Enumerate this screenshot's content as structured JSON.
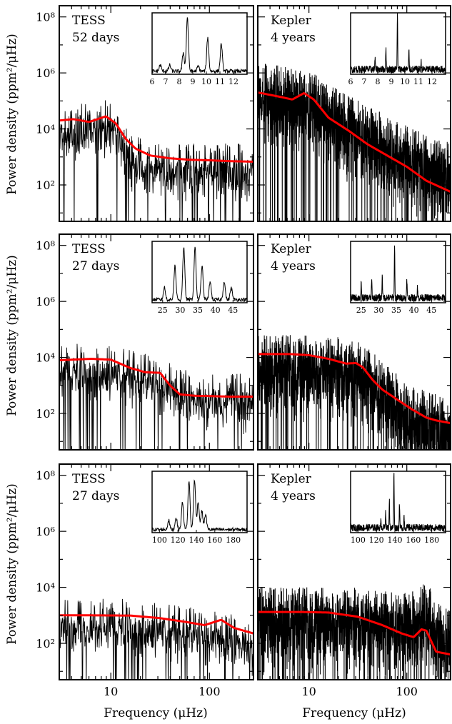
{
  "figure": {
    "ylabel": "Power density (ppm²/μHz)",
    "xlabel": "Frequency (μHz)",
    "x_ticks": [
      10,
      100
    ],
    "y_ticks": [
      "10²",
      "10⁴",
      "10⁶",
      "10⁸"
    ],
    "xlim": [
      3,
      280
    ],
    "ylim_log10": [
      0.7,
      8.4
    ]
  },
  "chart_data": [
    {
      "type": "line",
      "scale": "log-log",
      "label_lines": [
        "TESS",
        "52 days"
      ],
      "x_log_range": [
        0.48,
        2.45
      ],
      "series": [
        {
          "name": "spectrum",
          "color": "#000000",
          "noise_range": [
            2.9,
            4.8
          ],
          "trend_log10": [
            [
              0.48,
              4.3
            ],
            [
              0.7,
              4.3
            ],
            [
              0.95,
              4.45
            ],
            [
              1.05,
              4.2
            ],
            [
              1.2,
              3.3
            ],
            [
              1.35,
              3.0
            ],
            [
              1.6,
              2.9
            ],
            [
              2.0,
              2.9
            ],
            [
              2.45,
              2.9
            ]
          ]
        },
        {
          "name": "background fit",
          "color": "#ff0000",
          "trend_log10": [
            [
              0.48,
              4.3
            ],
            [
              0.62,
              4.35
            ],
            [
              0.78,
              4.25
            ],
            [
              0.95,
              4.45
            ],
            [
              1.05,
              4.2
            ],
            [
              1.15,
              3.65
            ],
            [
              1.25,
              3.3
            ],
            [
              1.4,
              3.05
            ],
            [
              1.6,
              2.95
            ],
            [
              1.8,
              2.9
            ],
            [
              2.0,
              2.88
            ],
            [
              2.2,
              2.85
            ],
            [
              2.45,
              2.83
            ]
          ]
        }
      ],
      "inset": {
        "x_ticks": [
          "6",
          "7",
          "8",
          "9",
          "10",
          "11",
          "12"
        ],
        "xlim": [
          6,
          13
        ],
        "peaks": [
          [
            8.6,
            0.88
          ],
          [
            10.1,
            0.55
          ],
          [
            11.1,
            0.45
          ],
          [
            8.3,
            0.3
          ],
          [
            6.6,
            0.1
          ],
          [
            7.3,
            0.1
          ],
          [
            9.4,
            0.08
          ]
        ]
      }
    },
    {
      "type": "line",
      "scale": "log-log",
      "label_lines": [
        "Kepler",
        "4 years"
      ],
      "x_log_range": [
        0.48,
        2.45
      ],
      "series": [
        {
          "name": "spectrum",
          "color": "#000000",
          "noise_range": [
            3.5,
            6.8
          ],
          "trend_log10": [
            [
              0.48,
              5.8
            ],
            [
              0.8,
              5.6
            ],
            [
              1.1,
              5.3
            ],
            [
              1.4,
              4.6
            ],
            [
              1.8,
              3.9
            ],
            [
              2.2,
              3.2
            ],
            [
              2.45,
              2.9
            ]
          ]
        },
        {
          "name": "background fit",
          "color": "#ff0000",
          "trend_log10": [
            [
              0.48,
              5.3
            ],
            [
              0.7,
              5.15
            ],
            [
              0.83,
              5.05
            ],
            [
              0.95,
              5.28
            ],
            [
              1.05,
              5.05
            ],
            [
              1.2,
              4.4
            ],
            [
              1.4,
              3.95
            ],
            [
              1.6,
              3.45
            ],
            [
              1.8,
              3.05
            ],
            [
              2.0,
              2.65
            ],
            [
              2.2,
              2.15
            ],
            [
              2.45,
              1.75
            ]
          ]
        }
      ],
      "inset": {
        "x_ticks": [
          "6",
          "7",
          "8",
          "9",
          "10",
          "11",
          "12"
        ],
        "xlim": [
          6,
          13
        ],
        "peaks": [
          [
            9.45,
            0.95
          ],
          [
            8.6,
            0.35
          ],
          [
            10.3,
            0.3
          ],
          [
            7.8,
            0.18
          ],
          [
            11.2,
            0.12
          ]
        ]
      }
    },
    {
      "type": "line",
      "scale": "log-log",
      "label_lines": [
        "TESS",
        "27 days"
      ],
      "x_log_range": [
        0.48,
        2.45
      ],
      "series": [
        {
          "name": "spectrum",
          "color": "#000000",
          "noise_range": [
            2.4,
            4.2
          ],
          "trend_log10": [
            [
              0.48,
              3.9
            ],
            [
              0.9,
              3.9
            ],
            [
              1.3,
              3.6
            ],
            [
              1.55,
              3.3
            ],
            [
              1.8,
              2.9
            ],
            [
              2.45,
              2.8
            ]
          ]
        },
        {
          "name": "background fit",
          "color": "#ff0000",
          "trend_log10": [
            [
              0.48,
              3.9
            ],
            [
              0.8,
              3.95
            ],
            [
              1.0,
              3.92
            ],
            [
              1.2,
              3.62
            ],
            [
              1.35,
              3.47
            ],
            [
              1.5,
              3.45
            ],
            [
              1.6,
              3.0
            ],
            [
              1.7,
              2.68
            ],
            [
              1.85,
              2.63
            ],
            [
              2.0,
              2.62
            ],
            [
              2.2,
              2.6
            ],
            [
              2.45,
              2.6
            ]
          ]
        }
      ],
      "inset": {
        "x_ticks": [
          "25",
          "30",
          "35",
          "40",
          "45"
        ],
        "xlim": [
          22,
          49
        ],
        "peaks": [
          [
            31,
            0.85
          ],
          [
            34.2,
            0.85
          ],
          [
            28.5,
            0.55
          ],
          [
            36.2,
            0.55
          ],
          [
            38.5,
            0.3
          ],
          [
            42.5,
            0.3
          ],
          [
            25.5,
            0.2
          ],
          [
            44.5,
            0.2
          ]
        ]
      }
    },
    {
      "type": "line",
      "scale": "log-log",
      "label_lines": [
        "Kepler",
        "4 years"
      ],
      "x_log_range": [
        0.48,
        2.45
      ],
      "series": [
        {
          "name": "spectrum",
          "color": "#000000",
          "noise_range": [
            2.8,
            4.6
          ],
          "trend_log10": [
            [
              0.48,
              4.2
            ],
            [
              1.2,
              4.2
            ],
            [
              1.5,
              4.0
            ],
            [
              1.75,
              3.3
            ],
            [
              2.0,
              2.5
            ],
            [
              2.45,
              1.9
            ]
          ]
        },
        {
          "name": "background fit",
          "color": "#ff0000",
          "trend_log10": [
            [
              0.48,
              4.12
            ],
            [
              0.8,
              4.12
            ],
            [
              1.0,
              4.08
            ],
            [
              1.2,
              3.95
            ],
            [
              1.38,
              3.78
            ],
            [
              1.48,
              3.8
            ],
            [
              1.55,
              3.65
            ],
            [
              1.65,
              3.2
            ],
            [
              1.75,
              2.85
            ],
            [
              1.9,
              2.5
            ],
            [
              2.05,
              2.15
            ],
            [
              2.2,
              1.85
            ],
            [
              2.3,
              1.75
            ],
            [
              2.45,
              1.65
            ]
          ]
        }
      ],
      "inset": {
        "x_ticks": [
          "25",
          "30",
          "35",
          "40",
          "45"
        ],
        "xlim": [
          22,
          49
        ],
        "peaks": [
          [
            34.5,
            0.9
          ],
          [
            31,
            0.4
          ],
          [
            28,
            0.3
          ],
          [
            38,
            0.3
          ],
          [
            25,
            0.22
          ],
          [
            41,
            0.18
          ]
        ]
      }
    },
    {
      "type": "line",
      "scale": "log-log",
      "label_lines": [
        "TESS",
        "27 days"
      ],
      "x_log_range": [
        0.48,
        2.45
      ],
      "series": [
        {
          "name": "spectrum",
          "color": "#000000",
          "noise_range": [
            1.5,
            3.7
          ],
          "trend_log10": [
            [
              0.48,
              3.0
            ],
            [
              0.8,
              3.0
            ],
            [
              1.2,
              3.0
            ],
            [
              1.6,
              2.8
            ],
            [
              2.0,
              2.6
            ],
            [
              2.45,
              2.3
            ]
          ]
        },
        {
          "name": "background fit",
          "color": "#ff0000",
          "trend_log10": [
            [
              0.48,
              3.0
            ],
            [
              0.8,
              3.0
            ],
            [
              1.2,
              2.99
            ],
            [
              1.5,
              2.9
            ],
            [
              1.75,
              2.77
            ],
            [
              1.95,
              2.65
            ],
            [
              2.12,
              2.84
            ],
            [
              2.25,
              2.55
            ],
            [
              2.45,
              2.35
            ]
          ]
        }
      ],
      "inset": {
        "x_ticks": [
          "100",
          "120",
          "140",
          "160",
          "180"
        ],
        "xlim": [
          92,
          195
        ],
        "peaks": [
          [
            138,
            0.8
          ],
          [
            132,
            0.8
          ],
          [
            125,
            0.45
          ],
          [
            142,
            0.45
          ],
          [
            146,
            0.3
          ],
          [
            150,
            0.25
          ],
          [
            118,
            0.2
          ],
          [
            110,
            0.15
          ]
        ]
      }
    },
    {
      "type": "line",
      "scale": "log-log",
      "label_lines": [
        "Kepler",
        "4 years"
      ],
      "x_log_range": [
        0.48,
        2.45
      ],
      "series": [
        {
          "name": "spectrum",
          "color": "#000000",
          "noise_range": [
            1.4,
            3.3
          ],
          "trend_log10": [
            [
              0.48,
              3.4
            ],
            [
              1.5,
              3.4
            ],
            [
              1.9,
              3.2
            ],
            [
              2.1,
              3.3
            ],
            [
              2.2,
              3.8
            ],
            [
              2.3,
              2.9
            ],
            [
              2.45,
              2.6
            ]
          ]
        },
        {
          "name": "background fit",
          "color": "#ff0000",
          "trend_log10": [
            [
              0.48,
              3.12
            ],
            [
              0.9,
              3.12
            ],
            [
              1.2,
              3.1
            ],
            [
              1.5,
              2.95
            ],
            [
              1.75,
              2.65
            ],
            [
              1.95,
              2.35
            ],
            [
              2.07,
              2.22
            ],
            [
              2.15,
              2.5
            ],
            [
              2.2,
              2.45
            ],
            [
              2.3,
              1.7
            ],
            [
              2.45,
              1.6
            ]
          ]
        }
      ],
      "inset": {
        "x_ticks": [
          "100",
          "120",
          "140",
          "160",
          "180"
        ],
        "xlim": [
          92,
          195
        ],
        "peaks": [
          [
            139,
            0.9
          ],
          [
            134,
            0.45
          ],
          [
            145,
            0.4
          ],
          [
            130,
            0.3
          ],
          [
            150,
            0.2
          ],
          [
            125,
            0.12
          ]
        ]
      }
    }
  ]
}
